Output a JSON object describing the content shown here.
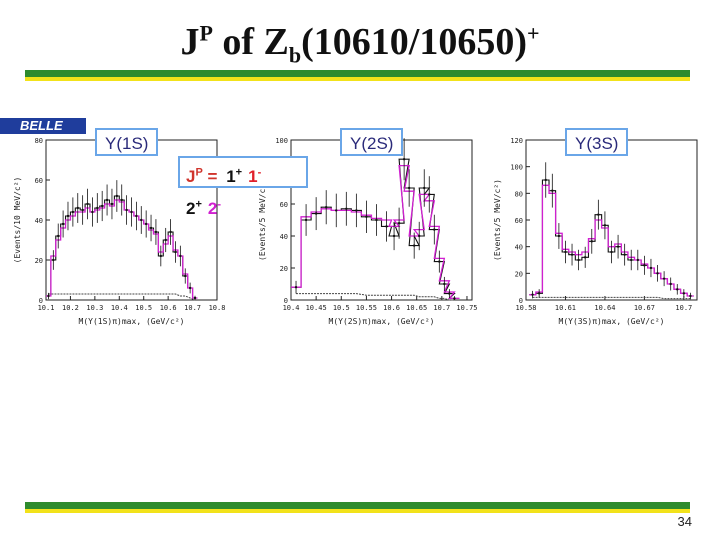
{
  "slide": {
    "title_main": "J",
    "title_sup1": "P",
    "title_mid": " of Z",
    "title_sub": "b",
    "title_tail": "(10610/10650)",
    "title_sup2": "+",
    "logo_text": "BELLE",
    "page_number": "34"
  },
  "legend_box": {
    "prefix": "J",
    "prefix_sup": "P",
    "eq": " = ",
    "entries": [
      {
        "label": "1",
        "sup": "+",
        "color": "#111111"
      },
      {
        "label": "1",
        "sup": "-",
        "color": "#e0202a"
      },
      {
        "label": "2",
        "sup": "+",
        "color": "#111111"
      },
      {
        "label": "2",
        "sup": "-",
        "color": "#d020d0"
      }
    ]
  },
  "chart_data": [
    {
      "type": "line",
      "panel_label": "Υ(1S)",
      "ylabel": "(Events/10 MeV/c²)",
      "xlabel": "M(Υ(1S)π)max, (GeV/c²)",
      "xlim": [
        10.1,
        10.8
      ],
      "ylim": [
        0,
        80
      ],
      "xticks": [
        10.1,
        10.2,
        10.3,
        10.4,
        10.5,
        10.6,
        10.7,
        10.8
      ],
      "yticks": [
        0,
        20,
        40,
        60,
        80
      ],
      "x": [
        10.11,
        10.13,
        10.15,
        10.17,
        10.19,
        10.21,
        10.23,
        10.25,
        10.27,
        10.29,
        10.31,
        10.33,
        10.35,
        10.37,
        10.39,
        10.41,
        10.43,
        10.45,
        10.47,
        10.49,
        10.51,
        10.53,
        10.55,
        10.57,
        10.59,
        10.61,
        10.63,
        10.65,
        10.67,
        10.69,
        10.71
      ],
      "series": [
        {
          "values": [
            2,
            20,
            32,
            38,
            42,
            44,
            46,
            45,
            48,
            44,
            46,
            47,
            50,
            48,
            52,
            50,
            45,
            44,
            42,
            40,
            38,
            36,
            34,
            22,
            30,
            34,
            24,
            22,
            12,
            6,
            1
          ]
        },
        {
          "values": [
            2,
            22,
            30,
            36,
            40,
            42,
            44,
            44,
            46,
            44,
            45,
            46,
            48,
            47,
            50,
            49,
            45,
            44,
            42,
            40,
            38,
            35,
            33,
            24,
            28,
            32,
            25,
            22,
            13,
            6,
            1
          ]
        }
      ],
      "background": [
        3,
        3,
        3,
        3,
        3,
        3,
        3,
        3,
        3,
        3,
        3,
        3,
        3,
        3,
        3,
        3,
        3,
        3,
        3,
        3,
        3,
        3,
        3,
        3,
        3,
        3,
        3,
        2,
        2,
        1,
        0
      ]
    },
    {
      "type": "line",
      "panel_label": "Υ(2S)",
      "ylabel": "(Events/5 MeV/c²)",
      "xlabel": "M(Υ(2S)π)max, (GeV/c²)",
      "xlim": [
        10.4,
        10.76
      ],
      "ylim": [
        0,
        100
      ],
      "xticks": [
        10.4,
        10.45,
        10.5,
        10.55,
        10.6,
        10.65,
        10.7,
        10.75
      ],
      "yticks": [
        0,
        20,
        40,
        60,
        80,
        100
      ],
      "x": [
        10.41,
        10.43,
        10.45,
        10.47,
        10.49,
        10.51,
        10.53,
        10.55,
        10.57,
        10.59,
        10.605,
        10.615,
        10.625,
        10.635,
        10.645,
        10.655,
        10.665,
        10.675,
        10.685,
        10.695,
        10.705,
        10.715,
        10.725
      ],
      "series": [
        {
          "values": [
            8,
            50,
            54,
            58,
            56,
            57,
            56,
            52,
            50,
            46,
            40,
            48,
            88,
            70,
            34,
            40,
            70,
            66,
            44,
            24,
            10,
            4,
            1
          ]
        },
        {
          "values": [
            8,
            52,
            55,
            57,
            56,
            56,
            55,
            53,
            51,
            50,
            46,
            50,
            84,
            68,
            40,
            44,
            66,
            62,
            46,
            26,
            12,
            5,
            1
          ]
        }
      ],
      "background": [
        4,
        4,
        4,
        4,
        4,
        4,
        4,
        3,
        3,
        3,
        3,
        3,
        3,
        3,
        3,
        2,
        2,
        2,
        2,
        1,
        1,
        0,
        0
      ]
    },
    {
      "type": "line",
      "panel_label": "Υ(3S)",
      "ylabel": "(Events/5 MeV/c²)",
      "xlabel": "M(Υ(3S)π)max, (GeV/c²)",
      "xlim": [
        10.58,
        10.71
      ],
      "ylim": [
        0,
        120
      ],
      "xticks": [
        10.58,
        10.61,
        10.64,
        10.67,
        10.7
      ],
      "yticks": [
        0,
        20,
        40,
        60,
        80,
        100,
        120
      ],
      "x": [
        10.585,
        10.59,
        10.595,
        10.6,
        10.605,
        10.61,
        10.615,
        10.62,
        10.625,
        10.63,
        10.635,
        10.64,
        10.645,
        10.65,
        10.655,
        10.66,
        10.665,
        10.67,
        10.675,
        10.68,
        10.685,
        10.69,
        10.695,
        10.7,
        10.705
      ],
      "series": [
        {
          "values": [
            4,
            5,
            90,
            82,
            48,
            36,
            34,
            30,
            32,
            44,
            64,
            56,
            36,
            40,
            34,
            30,
            30,
            26,
            24,
            20,
            16,
            12,
            8,
            5,
            3
          ]
        },
        {
          "values": [
            4,
            6,
            86,
            80,
            50,
            38,
            36,
            34,
            36,
            46,
            60,
            54,
            40,
            42,
            36,
            32,
            30,
            27,
            24,
            20,
            16,
            12,
            8,
            5,
            3
          ]
        }
      ],
      "background": [
        2,
        2,
        2,
        2,
        2,
        2,
        2,
        2,
        2,
        2,
        2,
        2,
        2,
        2,
        2,
        2,
        2,
        2,
        2,
        2,
        1,
        1,
        1,
        1,
        1
      ]
    }
  ]
}
